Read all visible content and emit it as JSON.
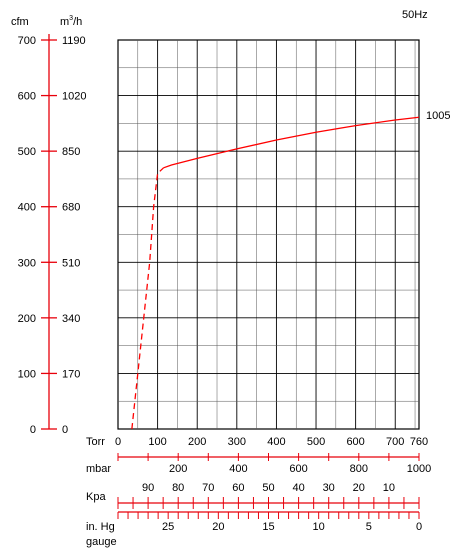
{
  "frequency": "50Hz",
  "chart_data": {
    "type": "line",
    "title": "",
    "xlabel": "Torr",
    "ylabel_left": "cfm",
    "ylabel_right": "m³/h",
    "x_range": [
      0,
      760
    ],
    "y_range": [
      0,
      700
    ],
    "grid": true,
    "x_axes": [
      {
        "label": "Torr",
        "range": [
          0,
          760
        ],
        "tick_labels": [
          "0",
          "100",
          "200",
          "300",
          "400",
          "500",
          "600",
          "700",
          "760"
        ]
      },
      {
        "label": "mbar",
        "range": [
          0,
          1000
        ],
        "tick_labels": [
          "200",
          "400",
          "600",
          "800",
          "1000"
        ]
      },
      {
        "label": "Kpa",
        "range": [
          0,
          100
        ],
        "tick_labels": [
          "90",
          "80",
          "70",
          "60",
          "50",
          "40",
          "30",
          "20",
          "10"
        ]
      },
      {
        "label": "in. Hg gauge",
        "range": [
          30,
          0
        ],
        "tick_labels": [
          "25",
          "20",
          "15",
          "10",
          "5",
          "0"
        ]
      }
    ],
    "y_axes": [
      {
        "label": "cfm",
        "tick_labels": [
          "700",
          "600",
          "500",
          "400",
          "300",
          "200",
          "100",
          "0"
        ]
      },
      {
        "label": "m³/h",
        "tick_labels": [
          "1190",
          "1020",
          "850",
          "680",
          "510",
          "340",
          "170",
          "0"
        ]
      }
    ],
    "series": [
      {
        "name": "1005",
        "color": "#ff0000",
        "dashed_segment": [
          [
            35,
            0
          ],
          [
            50,
            100
          ],
          [
            65,
            200
          ],
          [
            80,
            300
          ],
          [
            90,
            400
          ],
          [
            100,
            460
          ],
          [
            115,
            470
          ]
        ],
        "solid_segment": [
          [
            115,
            470
          ],
          [
            135,
            475
          ],
          [
            200,
            487
          ],
          [
            300,
            504
          ],
          [
            400,
            520
          ],
          [
            500,
            534
          ],
          [
            600,
            546
          ],
          [
            700,
            556
          ],
          [
            760,
            561
          ]
        ]
      }
    ]
  },
  "labels": {
    "cfm": "cfm",
    "m3h_base": "m",
    "m3h_sup": "3",
    "m3h_tail": "/h",
    "mbar": "mbar",
    "kpa": "Kpa",
    "inhg_line1": "in. Hg",
    "inhg_line2": "gauge"
  }
}
